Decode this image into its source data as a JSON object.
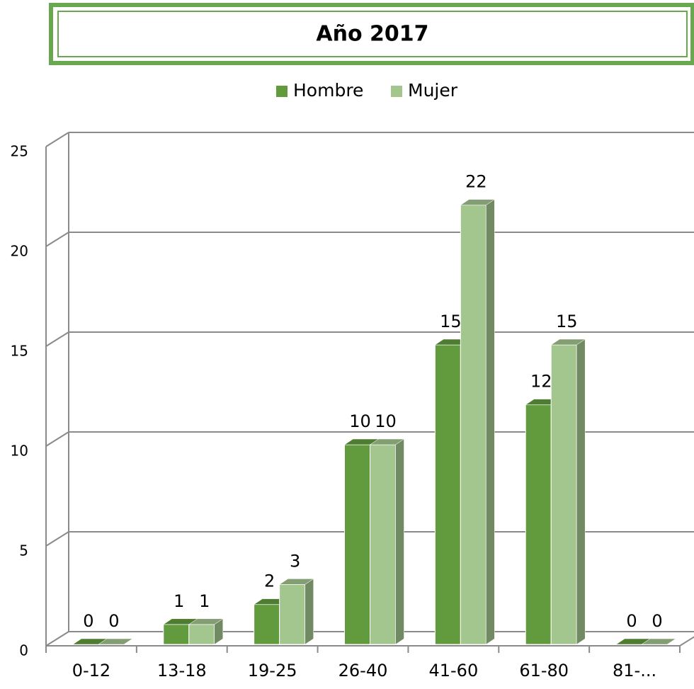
{
  "chart_data": {
    "type": "bar3d",
    "title": "Año 2017",
    "categories": [
      "0-12",
      "13-18",
      "19-25",
      "26-40",
      "41-60",
      "61-80",
      "81-..."
    ],
    "series": [
      {
        "name": "Hombre",
        "color": "#629b3d",
        "values": [
          0,
          1,
          2,
          10,
          15,
          12,
          0
        ]
      },
      {
        "name": "Mujer",
        "color": "#a3c58e",
        "values": [
          0,
          1,
          3,
          10,
          22,
          15,
          0
        ]
      }
    ],
    "ylim": [
      0,
      25
    ],
    "yticks": [
      0,
      5,
      10,
      15,
      20,
      25
    ],
    "grid": true,
    "legend": "top"
  }
}
